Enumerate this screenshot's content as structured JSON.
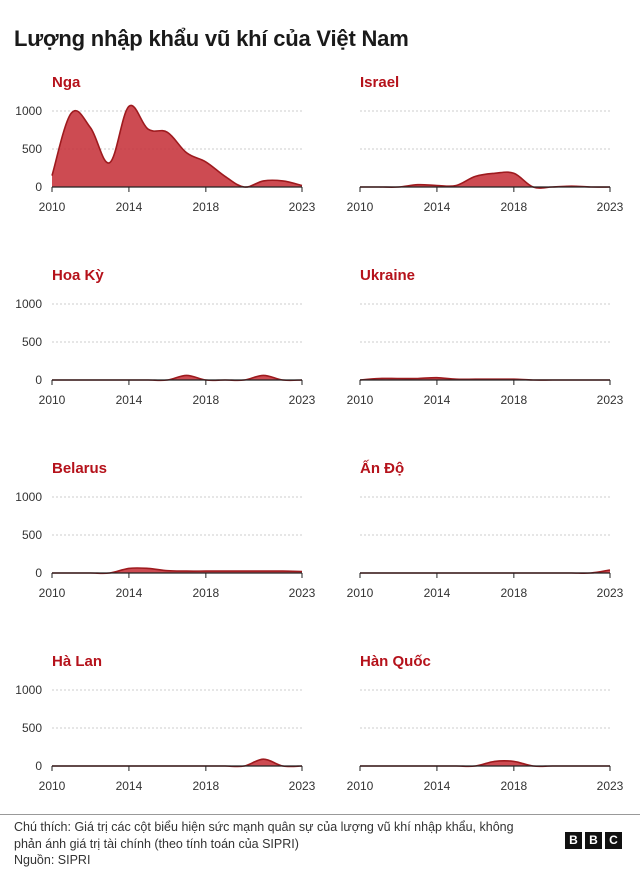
{
  "title": "Lượng nhập khẩu vũ khí của Việt Nam",
  "footer": {
    "note": "Chú thích: Giá trị các cột biểu hiện sức mạnh quân sự của lượng vũ khí nhập khẩu, không phản ánh giá trị tài chính (theo tính toán của SIPRI)",
    "source": "Nguồn: SIPRI",
    "logo_letters": [
      "B",
      "B",
      "C"
    ]
  },
  "colors": {
    "accent": "#b5121b",
    "fill": "#c8373f",
    "grid": "#cccccc",
    "axis": "#222222"
  },
  "chart_data": [
    {
      "type": "area",
      "title": "Nga",
      "xticks": [
        2010,
        2014,
        2018,
        2023
      ],
      "yticks": [
        0,
        500,
        1000
      ],
      "xlim": [
        2010,
        2023
      ],
      "ylim": [
        0,
        1000
      ],
      "x": [
        2010,
        2011,
        2012,
        2013,
        2014,
        2015,
        2016,
        2017,
        2018,
        2019,
        2020,
        2021,
        2022,
        2023
      ],
      "y": [
        150,
        970,
        780,
        320,
        1060,
        760,
        720,
        450,
        330,
        140,
        0,
        80,
        80,
        20
      ]
    },
    {
      "type": "area",
      "title": "Israel",
      "xticks": [
        2010,
        2014,
        2018,
        2023
      ],
      "yticks": [
        0,
        500,
        1000
      ],
      "xlim": [
        2010,
        2023
      ],
      "ylim": [
        0,
        1000
      ],
      "x": [
        2010,
        2011,
        2012,
        2013,
        2014,
        2015,
        2016,
        2017,
        2018,
        2019,
        2020,
        2021,
        2022,
        2023
      ],
      "y": [
        0,
        0,
        0,
        30,
        20,
        20,
        140,
        180,
        180,
        0,
        0,
        10,
        0,
        0
      ]
    },
    {
      "type": "area",
      "title": "Hoa Kỳ",
      "xticks": [
        2010,
        2014,
        2018,
        2023
      ],
      "yticks": [
        0,
        500,
        1000
      ],
      "xlim": [
        2010,
        2023
      ],
      "ylim": [
        0,
        1000
      ],
      "x": [
        2010,
        2011,
        2012,
        2013,
        2014,
        2015,
        2016,
        2017,
        2018,
        2019,
        2020,
        2021,
        2022,
        2023
      ],
      "y": [
        0,
        0,
        0,
        0,
        0,
        0,
        0,
        60,
        0,
        0,
        0,
        60,
        0,
        0
      ]
    },
    {
      "type": "area",
      "title": "Ukraine",
      "xticks": [
        2010,
        2014,
        2018,
        2023
      ],
      "yticks": [
        0,
        500,
        1000
      ],
      "xlim": [
        2010,
        2023
      ],
      "ylim": [
        0,
        1000
      ],
      "x": [
        2010,
        2011,
        2012,
        2013,
        2014,
        2015,
        2016,
        2017,
        2018,
        2019,
        2020,
        2021,
        2022,
        2023
      ],
      "y": [
        0,
        20,
        20,
        20,
        30,
        10,
        10,
        10,
        10,
        0,
        0,
        0,
        0,
        0
      ]
    },
    {
      "type": "area",
      "title": "Belarus",
      "xticks": [
        2010,
        2014,
        2018,
        2023
      ],
      "yticks": [
        0,
        500,
        1000
      ],
      "xlim": [
        2010,
        2023
      ],
      "ylim": [
        0,
        1000
      ],
      "x": [
        2010,
        2011,
        2012,
        2013,
        2014,
        2015,
        2016,
        2017,
        2018,
        2019,
        2020,
        2021,
        2022,
        2023
      ],
      "y": [
        0,
        0,
        0,
        0,
        60,
        60,
        30,
        25,
        25,
        25,
        25,
        25,
        25,
        20
      ]
    },
    {
      "type": "area",
      "title": "Ấn Độ",
      "xticks": [
        2010,
        2014,
        2018,
        2023
      ],
      "yticks": [
        0,
        500,
        1000
      ],
      "xlim": [
        2010,
        2023
      ],
      "ylim": [
        0,
        1000
      ],
      "x": [
        2010,
        2011,
        2012,
        2013,
        2014,
        2015,
        2016,
        2017,
        2018,
        2019,
        2020,
        2021,
        2022,
        2023
      ],
      "y": [
        0,
        0,
        0,
        0,
        0,
        0,
        0,
        0,
        0,
        0,
        0,
        0,
        0,
        40
      ]
    },
    {
      "type": "area",
      "title": "Hà Lan",
      "xticks": [
        2010,
        2014,
        2018,
        2023
      ],
      "yticks": [
        0,
        500,
        1000
      ],
      "xlim": [
        2010,
        2023
      ],
      "ylim": [
        0,
        1000
      ],
      "x": [
        2010,
        2011,
        2012,
        2013,
        2014,
        2015,
        2016,
        2017,
        2018,
        2019,
        2020,
        2021,
        2022,
        2023
      ],
      "y": [
        0,
        0,
        0,
        0,
        0,
        0,
        0,
        0,
        0,
        0,
        0,
        90,
        0,
        0
      ]
    },
    {
      "type": "area",
      "title": "Hàn Quốc",
      "xticks": [
        2010,
        2014,
        2018,
        2023
      ],
      "yticks": [
        0,
        500,
        1000
      ],
      "xlim": [
        2010,
        2023
      ],
      "ylim": [
        0,
        1000
      ],
      "x": [
        2010,
        2011,
        2012,
        2013,
        2014,
        2015,
        2016,
        2017,
        2018,
        2019,
        2020,
        2021,
        2022,
        2023
      ],
      "y": [
        0,
        0,
        0,
        0,
        0,
        0,
        0,
        60,
        60,
        0,
        0,
        0,
        0,
        0
      ]
    }
  ]
}
